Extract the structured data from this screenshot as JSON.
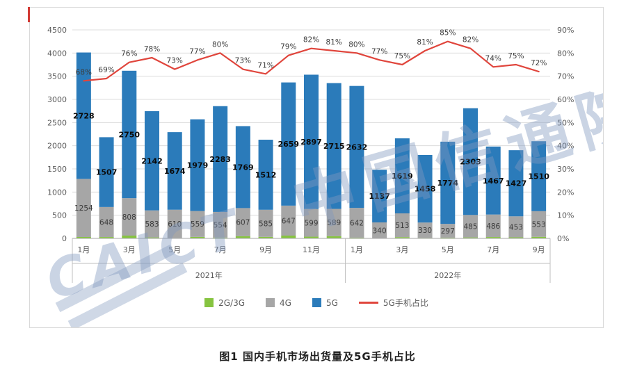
{
  "colors": {
    "accent_mark": "#d23a34",
    "grid": "#dcdcdc",
    "axis_line": "#a6a6a6",
    "band_line": "#bfbfbf",
    "axis_text": "#595959",
    "watermark": "rgba(128,153,190,0.42)"
  },
  "chart_data": {
    "type": "bar",
    "subtype": "stacked-bars-with-percentage-line",
    "title": "图1 国内手机市场出货量及5G手机占比",
    "watermark_latin": "CAICT",
    "watermark_cjk": "中国信通院",
    "left_axis": {
      "min": 0,
      "max": 4500,
      "step": 500,
      "ticks": [
        "4500",
        "4000",
        "3500",
        "3000",
        "2500",
        "2000",
        "1500",
        "1000",
        "500",
        "0"
      ]
    },
    "right_axis": {
      "min": 0,
      "max": 90,
      "step": 10,
      "ticks": [
        "90%",
        "80%",
        "70%",
        "60%",
        "50%",
        "40%",
        "30%",
        "20%",
        "10%",
        "0%"
      ]
    },
    "n_months": 21,
    "month_ticks": [
      {
        "index": 0,
        "label": "1月"
      },
      {
        "index": 2,
        "label": "3月"
      },
      {
        "index": 4,
        "label": "5月"
      },
      {
        "index": 6,
        "label": "7月"
      },
      {
        "index": 8,
        "label": "9月"
      },
      {
        "index": 10,
        "label": "11月"
      },
      {
        "index": 12,
        "label": "1月"
      },
      {
        "index": 14,
        "label": "3月"
      },
      {
        "index": 16,
        "label": "5月"
      },
      {
        "index": 18,
        "label": "7月"
      },
      {
        "index": 20,
        "label": "9月"
      }
    ],
    "year_groups": [
      {
        "label": "2021年",
        "start": 0,
        "count": 12
      },
      {
        "label": "2022年",
        "start": 12,
        "count": 9
      }
    ],
    "series": [
      {
        "name": "2G/3G",
        "kind": "bar",
        "color": "#86c440",
        "show_labels": false,
        "values": [
          30,
          29,
          60,
          21,
          9,
          32,
          17,
          47,
          33,
          60,
          37,
          48,
          16,
          5,
          27,
          12,
          16,
          21,
          29,
          23,
          34
        ]
      },
      {
        "name": "4G",
        "kind": "bar",
        "color": "#a6a6a6",
        "show_labels": true,
        "values": [
          1254,
          648,
          808,
          583,
          610,
          559,
          554,
          607,
          585,
          647,
          599,
          589,
          642,
          340,
          513,
          330,
          297,
          485,
          486,
          453,
          553
        ]
      },
      {
        "name": "5G",
        "kind": "bar",
        "color": "#2b7bba",
        "show_labels": true,
        "values": [
          2728,
          1507,
          2750,
          2142,
          1674,
          1979,
          2283,
          1769,
          1512,
          2659,
          2897,
          2715,
          2632,
          1137,
          1619,
          1458,
          1774,
          2303,
          1467,
          1427,
          1510
        ]
      },
      {
        "name": "5G手机占比",
        "kind": "line",
        "axis": "right",
        "color": "#e0453c",
        "label_suffix": "%",
        "values": [
          68,
          69,
          76,
          78,
          73,
          77,
          80,
          73,
          71,
          79,
          82,
          81,
          80,
          77,
          75,
          81,
          85,
          82,
          74,
          75,
          72
        ]
      }
    ]
  }
}
